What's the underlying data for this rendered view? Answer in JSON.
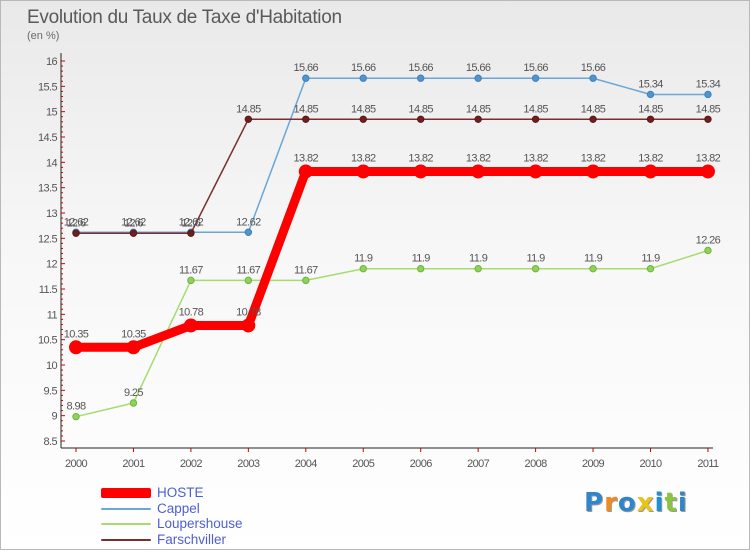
{
  "title": "Evolution du Taux de Taxe d'Habitation",
  "subtitle": "(en %)",
  "logo": {
    "text": "Proxiti",
    "letter_colors": [
      "#2f86c9",
      "#f08a1c",
      "#2f86c9",
      "#e8c31a",
      "#1f8fd6",
      "#8bc43f",
      "#2f86c9"
    ]
  },
  "chart_data": {
    "type": "line",
    "title": "Evolution du Taux de Taxe d'Habitation",
    "ylabel": "(en %)",
    "xlabel": "",
    "x": [
      "2000",
      "2001",
      "2002",
      "2003",
      "2004",
      "2005",
      "2006",
      "2007",
      "2008",
      "2009",
      "2010",
      "2011"
    ],
    "ylim": [
      8.5,
      16
    ],
    "ytick_labels": [
      "8.5",
      "9",
      "9.5",
      "10",
      "10.5",
      "11",
      "11.5",
      "12",
      "12.5",
      "13",
      "13.5",
      "14",
      "14.5",
      "15",
      "15.5",
      "16"
    ],
    "grid": false,
    "legend_position": "bottom-left",
    "series": [
      {
        "name": "HOSTE",
        "color": "#ff0000",
        "values": [
          10.35,
          10.35,
          10.78,
          10.78,
          13.82,
          13.82,
          13.82,
          13.82,
          13.82,
          13.82,
          13.82,
          13.82
        ],
        "labels": [
          "10.35",
          "10.35",
          "10.78",
          "10.78",
          "13.82",
          "13.82",
          "13.82",
          "13.82",
          "13.82",
          "13.82",
          "13.82",
          "13.82"
        ]
      },
      {
        "name": "Cappel",
        "color": "#6aa6d6",
        "values": [
          12.62,
          12.62,
          12.62,
          12.62,
          15.66,
          15.66,
          15.66,
          15.66,
          15.66,
          15.66,
          15.34,
          15.34
        ],
        "labels": [
          "12.62",
          "12.62",
          "12.62",
          "12.62",
          "15.66",
          "15.66",
          "15.66",
          "15.66",
          "15.66",
          "15.66",
          "15.34",
          "15.34"
        ]
      },
      {
        "name": "Loupershouse",
        "color": "#a6dc6f",
        "values": [
          8.98,
          9.25,
          11.67,
          11.67,
          11.67,
          11.9,
          11.9,
          11.9,
          11.9,
          11.9,
          11.9,
          12.26
        ],
        "labels": [
          "8.98",
          "9.25",
          "11.67",
          "11.67",
          "11.67",
          "11.9",
          "11.9",
          "11.9",
          "11.9",
          "11.9",
          "11.9",
          "12.26"
        ]
      },
      {
        "name": "Farschviller",
        "color": "#7a2e2e",
        "values": [
          12.6,
          12.6,
          12.6,
          14.85,
          14.85,
          14.85,
          14.85,
          14.85,
          14.85,
          14.85,
          14.85,
          14.85
        ],
        "labels": [
          "12.6",
          "12.6",
          "12.6",
          "14.85",
          "14.85",
          "14.85",
          "14.85",
          "14.85",
          "14.85",
          "14.85",
          "14.85",
          "14.85"
        ]
      }
    ]
  }
}
